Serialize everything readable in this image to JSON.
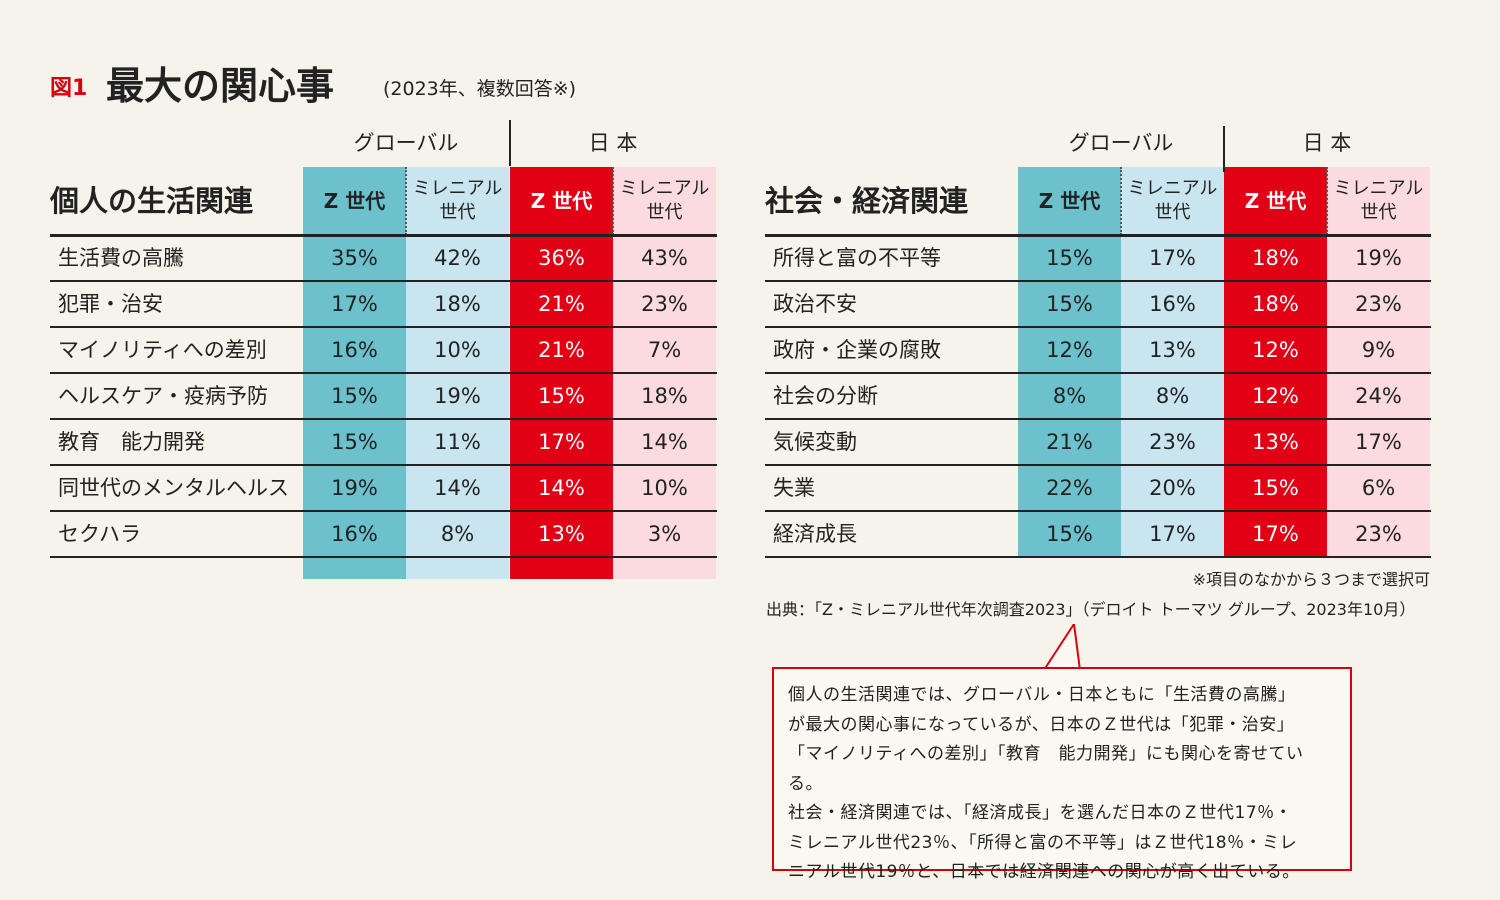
{
  "figure": {
    "label": "図1",
    "title": "最大の関心事",
    "note": "(2023年、複数回答※)"
  },
  "chart_data": [
    {
      "type": "table",
      "title": "個人の生活関連",
      "group_headers": [
        "グローバル",
        "日 本"
      ],
      "column_headers": [
        "Z 世代",
        "ミレニアル\n世代",
        "Z 世代",
        "ミレニアル\n世代"
      ],
      "rows": [
        {
          "label": "生活費の高騰",
          "values": [
            "35%",
            "42%",
            "36%",
            "43%"
          ]
        },
        {
          "label": "犯罪・治安",
          "values": [
            "17%",
            "18%",
            "21%",
            "23%"
          ]
        },
        {
          "label": "マイノリティへの差別",
          "values": [
            "16%",
            "10%",
            "21%",
            "7%"
          ]
        },
        {
          "label": "ヘルスケア・疫病予防",
          "values": [
            "15%",
            "19%",
            "15%",
            "18%"
          ]
        },
        {
          "label": "教育　能力開発",
          "values": [
            "15%",
            "11%",
            "17%",
            "14%"
          ]
        },
        {
          "label": "同世代のメンタルヘルス",
          "values": [
            "19%",
            "14%",
            "14%",
            "10%"
          ]
        },
        {
          "label": "セクハラ",
          "values": [
            "16%",
            "8%",
            "13%",
            "3%"
          ]
        }
      ]
    },
    {
      "type": "table",
      "title": "社会・経済関連",
      "group_headers": [
        "グローバル",
        "日 本"
      ],
      "column_headers": [
        "Z 世代",
        "ミレニアル\n世代",
        "Z 世代",
        "ミレニアル\n世代"
      ],
      "rows": [
        {
          "label": "所得と富の不平等",
          "values": [
            "15%",
            "17%",
            "18%",
            "19%"
          ]
        },
        {
          "label": "政治不安",
          "values": [
            "15%",
            "16%",
            "18%",
            "23%"
          ]
        },
        {
          "label": "政府・企業の腐敗",
          "values": [
            "12%",
            "13%",
            "12%",
            "9%"
          ]
        },
        {
          "label": "社会の分断",
          "values": [
            "8%",
            "8%",
            "12%",
            "24%"
          ]
        },
        {
          "label": "気候変動",
          "values": [
            "21%",
            "23%",
            "13%",
            "17%"
          ]
        },
        {
          "label": "失業",
          "values": [
            "22%",
            "20%",
            "15%",
            "6%"
          ]
        },
        {
          "label": "経済成長",
          "values": [
            "15%",
            "17%",
            "17%",
            "23%"
          ]
        }
      ]
    }
  ],
  "footnote": "※項目のなかから３つまで選択可",
  "source": "出典：「Z・ミレニアル世代年次調査2023」（デロイト トーマツ グループ、2023年10月）",
  "callout": {
    "lines": [
      "個人の生活関連では、グローバル・日本ともに「生活費の高騰」",
      "が最大の関心事になっているが、日本のＺ世代は「犯罪・治安」",
      "「マイノリティへの差別」「教育　能力開発」にも関心を寄せている。",
      "社会・経済関連では、「経済成長」を選んだ日本のＺ世代17％・",
      "ミレニアル世代23％、「所得と富の不平等」はＺ世代18％・ミレ",
      "ニアル世代19％と、日本では経済関連への関心が高く出ている。"
    ]
  },
  "colors": {
    "global_z": "#6cc1cc",
    "global_millennial": "#c9e6f0",
    "japan_z": "#e20015",
    "japan_millennial": "#fbdbe0",
    "accent": "#d7000f",
    "background": "#f6f3ea"
  }
}
